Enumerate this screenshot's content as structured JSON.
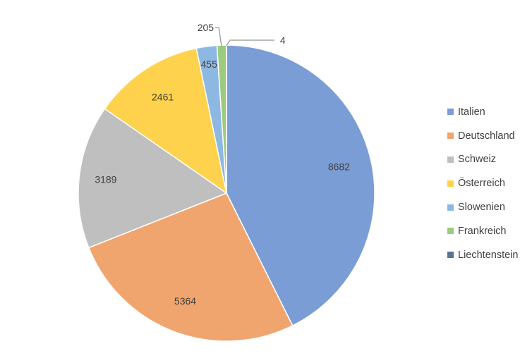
{
  "chart_data": {
    "type": "pie",
    "categories": [
      "Italien",
      "Deutschland",
      "Schweiz",
      "Österreich",
      "Slowenien",
      "Frankreich",
      "Liechtenstein"
    ],
    "values": [
      8682,
      5364,
      3189,
      2461,
      455,
      205,
      4
    ],
    "colors": [
      "#7b9dd6",
      "#f0a56e",
      "#bfbfbf",
      "#ffd24d",
      "#8db8e2",
      "#9ccb7e",
      "#5b7396"
    ],
    "data_labels": [
      "8682",
      "5364",
      "3189",
      "2461",
      "455",
      "205",
      "4"
    ],
    "legend_position": "right"
  }
}
